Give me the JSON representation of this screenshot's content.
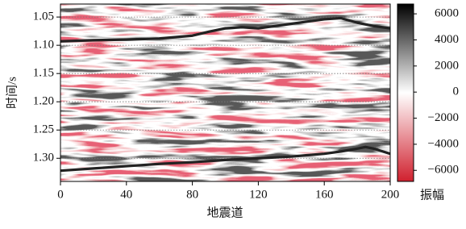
{
  "chart_data": {
    "type": "seismic",
    "xlabel": "地震道",
    "ylabel": "时间/s",
    "xlim": [
      0,
      200
    ],
    "xticks": [
      0,
      40,
      80,
      120,
      160,
      200
    ],
    "ylim": [
      1.027,
      1.341
    ],
    "yticks": [
      1.05,
      {
        "value": 1.1,
        "label": "1.10"
      },
      1.15,
      {
        "value": 1.2,
        "label": "1.20"
      },
      1.25,
      {
        "value": 1.3,
        "label": "1.30"
      }
    ],
    "y_inverted": true,
    "grid": true,
    "colorbar": {
      "label": "振幅",
      "lim": [
        -6850,
        6750
      ],
      "ticks": [
        6000,
        4000,
        2000,
        0,
        {
          "value": -2000,
          "label": "−2000"
        },
        {
          "value": -4000,
          "label": "−4000"
        },
        {
          "value": -6000,
          "label": "−6000"
        }
      ],
      "colors": [
        "#d0202e",
        "#ffffff",
        "#000000"
      ]
    },
    "series": [
      {
        "color": "#222222",
        "x": [
          0,
          20,
          40,
          60,
          80,
          90,
          100,
          110,
          120,
          130,
          140,
          150,
          160,
          170,
          180,
          190,
          200
        ],
        "values": [
          1.093,
          1.091,
          1.09,
          1.088,
          1.083,
          1.076,
          1.07,
          1.068,
          1.07,
          1.066,
          1.062,
          1.058,
          1.054,
          1.052,
          1.06,
          1.066,
          1.07
        ]
      },
      {
        "color": "#222222",
        "x": [
          0,
          20,
          40,
          60,
          80,
          100,
          120,
          140,
          160,
          170,
          180,
          185,
          190,
          200
        ],
        "values": [
          1.322,
          1.318,
          1.314,
          1.31,
          1.307,
          1.303,
          1.3,
          1.297,
          1.292,
          1.288,
          1.283,
          1.28,
          1.283,
          1.292
        ]
      }
    ]
  }
}
